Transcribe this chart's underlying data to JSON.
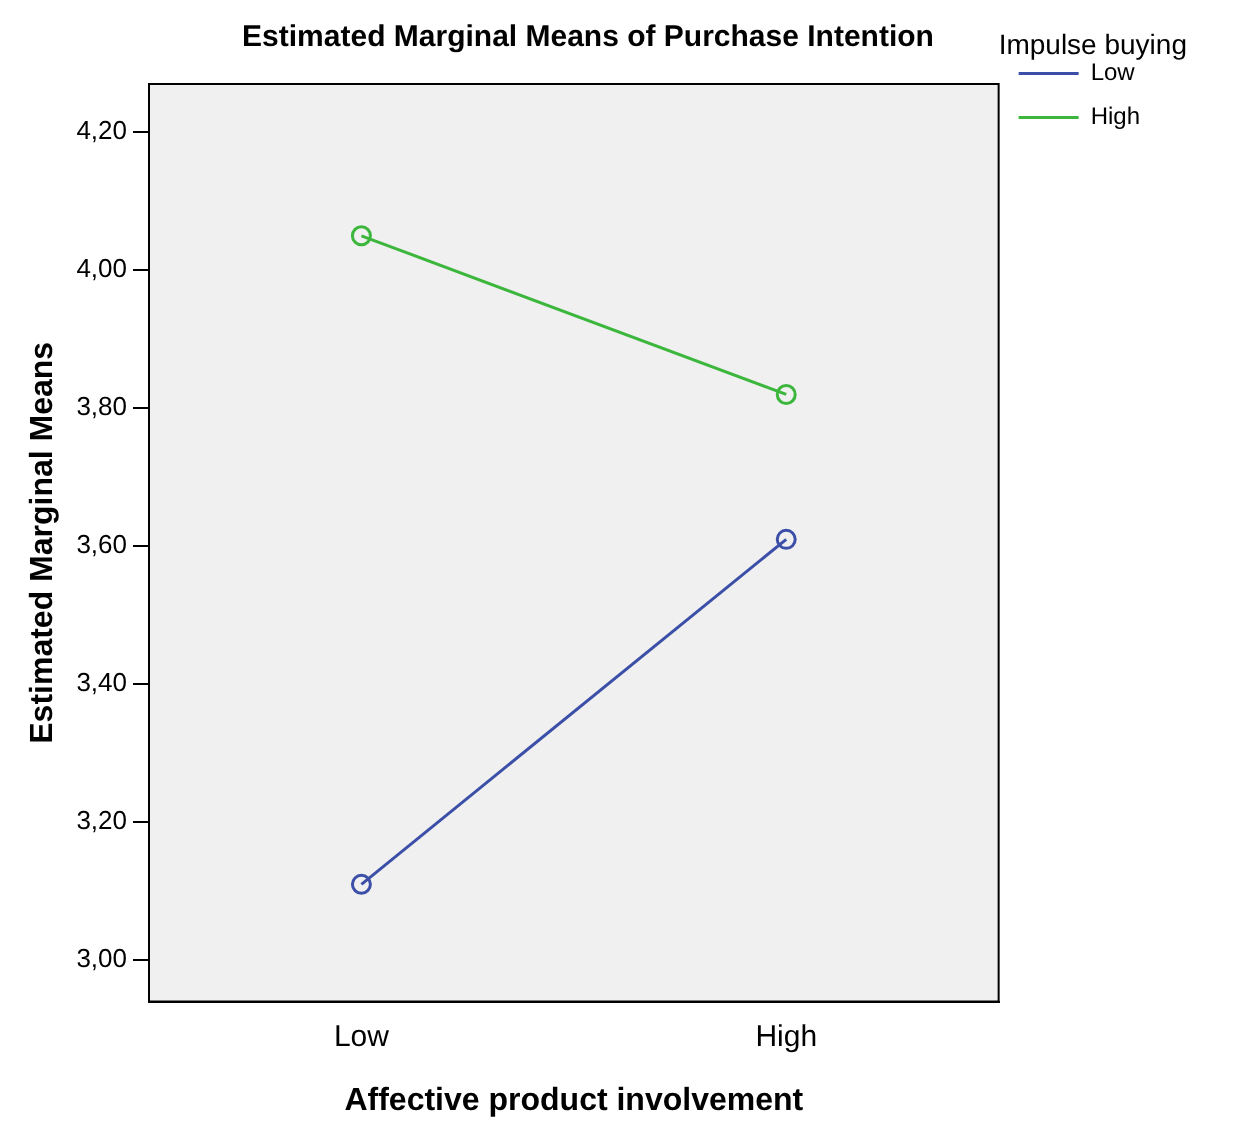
{
  "chart_data": {
    "type": "line",
    "title": "Estimated Marginal Means of Purchase Intention",
    "xlabel": "Affective product involvement",
    "ylabel": "Estimated Marginal Means",
    "legend_title": "Impulse buying",
    "categories": [
      "Low",
      "High"
    ],
    "series": [
      {
        "name": "Low",
        "color": "#3c4fa8",
        "values": [
          3.11,
          3.61
        ]
      },
      {
        "name": "High",
        "color": "#3cb63c",
        "values": [
          4.05,
          3.82
        ]
      }
    ],
    "ylim": [
      2.94,
      4.27
    ],
    "yticks": [
      {
        "value": 3,
        "label": "3,00"
      },
      {
        "value": 3.2,
        "label": "3,20"
      },
      {
        "value": 3.4,
        "label": "3,40"
      },
      {
        "value": 3.6,
        "label": "3,60"
      },
      {
        "value": 3.8,
        "label": "3,80"
      },
      {
        "value": 4,
        "label": "4,00"
      },
      {
        "value": 4.2,
        "label": "4,20"
      }
    ],
    "grid": false,
    "legend": "top right",
    "marker": "circle",
    "line_style": "solid"
  }
}
